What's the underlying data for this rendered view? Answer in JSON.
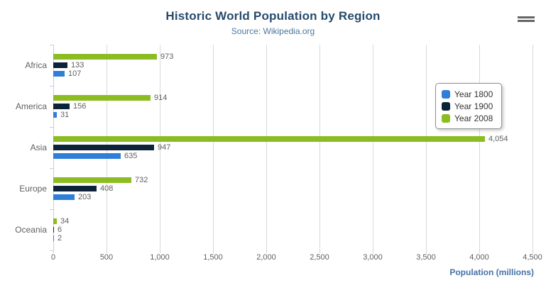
{
  "chart_data": {
    "type": "bar",
    "orientation": "horizontal",
    "title": "Historic World Population by Region",
    "subtitle": "Source: Wikipedia.org",
    "categories": [
      "Africa",
      "America",
      "Asia",
      "Europe",
      "Oceania"
    ],
    "series": [
      {
        "name": "Year 1800",
        "color": "#2f7ed8",
        "values": [
          107,
          31,
          635,
          203,
          2
        ]
      },
      {
        "name": "Year 1900",
        "color": "#0d233a",
        "values": [
          133,
          156,
          947,
          408,
          6
        ]
      },
      {
        "name": "Year 2008",
        "color": "#8bbc21",
        "values": [
          973,
          914,
          4054,
          732,
          34
        ]
      }
    ],
    "bar_row_order_top_to_bottom": [
      "Year 2008",
      "Year 1900",
      "Year 1800"
    ],
    "xlabel": "Population (millions)",
    "xlim": [
      0,
      4500
    ],
    "x_tick_labels": [
      "0",
      "500",
      "1,000",
      "1,500",
      "2,000",
      "2,500",
      "3,000",
      "3,500",
      "4,000",
      "4,500"
    ],
    "grid": true,
    "legend_position": "right",
    "legend_items": [
      "Year 1800",
      "Year 1900",
      "Year 2008"
    ]
  },
  "menu": {
    "icon": "hamburger-menu-icon"
  },
  "colors": {
    "title": "#274b6d",
    "subtitle": "#4d759e",
    "axis_title": "#4572a7",
    "tick_label": "#606060",
    "category_label": "#606060",
    "value_label": "#606060",
    "gridline": "#d8d8d8",
    "axis_line": "#c0d0e0",
    "legend_border": "#909090",
    "menu_icon": "#666666"
  }
}
